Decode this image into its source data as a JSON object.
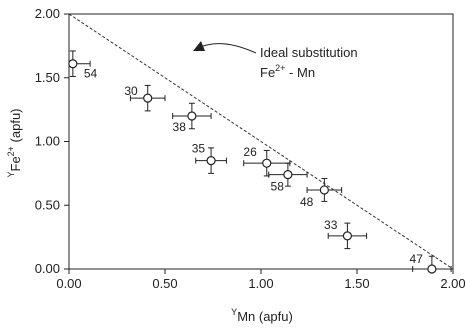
{
  "chart_data": {
    "type": "scatter",
    "title": "",
    "xlabel": {
      "pre": "Y",
      "main": "Mn (apfu)"
    },
    "ylabel": {
      "pre": "Y",
      "main": "Fe",
      "sup": "2+",
      "post": " (apfu)"
    },
    "xlim": [
      0,
      2
    ],
    "ylim": [
      0,
      2
    ],
    "x_ticks": [
      "0.00",
      "0.50",
      "1.00",
      "1.50",
      "2.00"
    ],
    "y_ticks": [
      "0.00",
      "0.50",
      "1.00",
      "1.50",
      "2.00"
    ],
    "grid": false,
    "points": [
      {
        "label": "54",
        "x": 0.02,
        "y": 1.61,
        "xerr": 0.09,
        "yerr": 0.1
      },
      {
        "label": "30",
        "x": 0.41,
        "y": 1.34,
        "xerr": 0.09,
        "yerr": 0.1
      },
      {
        "label": "38",
        "x": 0.64,
        "y": 1.2,
        "xerr": 0.1,
        "yerr": 0.1
      },
      {
        "label": "35",
        "x": 0.74,
        "y": 0.85,
        "xerr": 0.08,
        "yerr": 0.1
      },
      {
        "label": "26",
        "x": 1.03,
        "y": 0.83,
        "xerr": 0.12,
        "yerr": 0.1
      },
      {
        "label": "58",
        "x": 1.14,
        "y": 0.74,
        "xerr": 0.1,
        "yerr": 0.09
      },
      {
        "label": "48",
        "x": 1.33,
        "y": 0.62,
        "xerr": 0.09,
        "yerr": 0.09
      },
      {
        "label": "33",
        "x": 1.45,
        "y": 0.26,
        "xerr": 0.1,
        "yerr": 0.1
      },
      {
        "label": "47",
        "x": 1.89,
        "y": 0.0,
        "xerr": 0.1,
        "yerr": 0.1
      }
    ],
    "reference_line": {
      "from": [
        0,
        2
      ],
      "to": [
        2,
        0
      ],
      "style": "dashed"
    },
    "annotation": {
      "line1": "Ideal substitution",
      "line2_pre": "Fe",
      "line2_sup": "2+",
      "line2_post": " - Mn"
    }
  }
}
